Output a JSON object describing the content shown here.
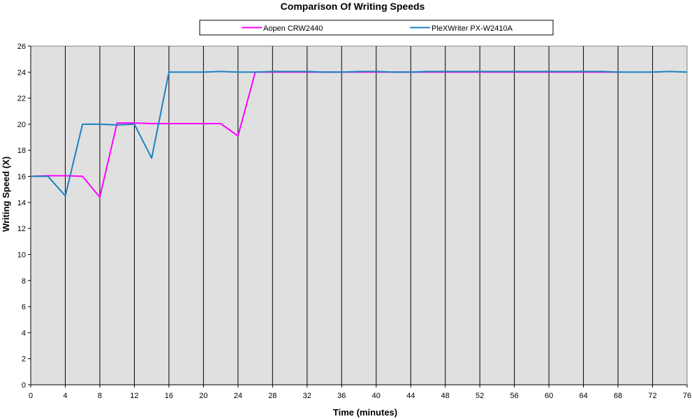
{
  "chart_data": {
    "type": "line",
    "title": "Comparison Of Writing Speeds",
    "xlabel": "Time (minutes)",
    "ylabel": "Writing Speed (X)",
    "xlim": [
      0,
      76
    ],
    "ylim": [
      0,
      26
    ],
    "x_ticks": [
      0,
      4,
      8,
      12,
      16,
      20,
      24,
      28,
      32,
      36,
      40,
      44,
      48,
      52,
      56,
      60,
      64,
      68,
      72,
      76
    ],
    "y_ticks": [
      0,
      2,
      4,
      6,
      8,
      10,
      12,
      14,
      16,
      18,
      20,
      22,
      24,
      26
    ],
    "grid": "vertical",
    "background": "#e0e0e0",
    "legend_position": "top",
    "series": [
      {
        "name": "Aopen CRW2440",
        "color": "#ff00ff",
        "x": [
          0,
          2,
          4,
          6,
          8,
          10,
          12,
          14,
          16,
          18,
          20,
          22,
          24,
          26,
          28,
          30,
          32,
          34,
          36,
          38,
          40,
          42,
          44,
          46,
          48,
          50,
          52,
          54,
          56,
          58,
          60,
          62,
          64,
          66,
          68
        ],
        "y": [
          16,
          16.05,
          16.05,
          16,
          14.4,
          20.1,
          20.1,
          20.05,
          20.05,
          20.05,
          20.05,
          20.05,
          19.1,
          24,
          24,
          24,
          24,
          24,
          24,
          24,
          24,
          24,
          24,
          24,
          24,
          24,
          24,
          24,
          24,
          24,
          24,
          24,
          24,
          24,
          24
        ]
      },
      {
        "name": "PleXWriter PX-W2410A",
        "color": "#1a82c0",
        "x": [
          0,
          2,
          4,
          6,
          8,
          10,
          12,
          14,
          16,
          18,
          20,
          22,
          24,
          26,
          28,
          30,
          32,
          34,
          36,
          38,
          40,
          42,
          44,
          46,
          48,
          50,
          52,
          54,
          56,
          58,
          60,
          62,
          64,
          66,
          68,
          70,
          72,
          74,
          76
        ],
        "y": [
          16,
          16,
          14.5,
          20,
          20,
          19.95,
          20,
          17.4,
          24,
          24,
          24,
          24.05,
          24,
          24,
          24.05,
          24.05,
          24.05,
          24,
          24,
          24.05,
          24.05,
          24,
          24,
          24.05,
          24.05,
          24.05,
          24.05,
          24.05,
          24.05,
          24.05,
          24.05,
          24.05,
          24.05,
          24.05,
          24,
          24,
          24,
          24.05,
          24
        ]
      }
    ]
  }
}
